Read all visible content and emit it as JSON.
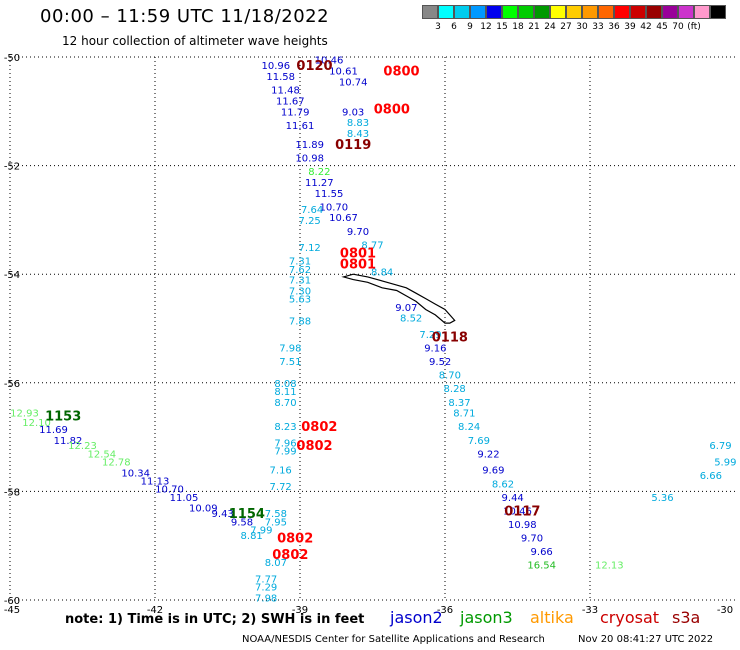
{
  "title": "00:00 – 11:59 UTC 11/18/2022",
  "subtitle": "12 hour collection of altimeter wave heights",
  "scale": {
    "colors": [
      "#888888",
      "#00ffff",
      "#00ccee",
      "#0099ff",
      "#0000ee",
      "#00ff00",
      "#00cc00",
      "#009900",
      "#ffff00",
      "#ffcc00",
      "#ff9900",
      "#ff6600",
      "#ff0000",
      "#cc0000",
      "#990000",
      "#990099",
      "#cc33cc",
      "#ff99cc",
      "#000000"
    ],
    "labels": [
      "3",
      "6",
      "9",
      "12",
      "15",
      "18",
      "21",
      "24",
      "27",
      "30",
      "33",
      "36",
      "39",
      "42",
      "45",
      "70",
      "(ft)"
    ]
  },
  "axes": {
    "lon_ticks": [
      "-45",
      "-42",
      "-39",
      "-36",
      "-33",
      "-30"
    ],
    "lat_ticks": [
      "-50",
      "-52",
      "-54",
      "-56",
      "-58",
      "-60"
    ]
  },
  "time_labels": [
    {
      "text": "0120",
      "lon": -38.7,
      "lat": -50.15,
      "color": "#880000"
    },
    {
      "text": "0800",
      "lon": -36.9,
      "lat": -50.25,
      "color": "#ff0000"
    },
    {
      "text": "0800",
      "lon": -37.1,
      "lat": -50.95,
      "color": "#ff0000"
    },
    {
      "text": "0119",
      "lon": -37.9,
      "lat": -51.6,
      "color": "#880000"
    },
    {
      "text": "0801",
      "lon": -37.8,
      "lat": -53.6,
      "color": "#ff0000"
    },
    {
      "text": "0801",
      "lon": -37.8,
      "lat": -53.8,
      "color": "#ff0000"
    },
    {
      "text": "0118",
      "lon": -35.9,
      "lat": -55.15,
      "color": "#880000"
    },
    {
      "text": "1153",
      "lon": -43.9,
      "lat": -56.6,
      "color": "#006600"
    },
    {
      "text": "0802",
      "lon": -38.6,
      "lat": -56.8,
      "color": "#ff0000"
    },
    {
      "text": "0802",
      "lon": -38.7,
      "lat": -57.15,
      "color": "#ff0000"
    },
    {
      "text": "0117",
      "lon": -34.4,
      "lat": -58.35,
      "color": "#880000"
    },
    {
      "text": "1154",
      "lon": -40.1,
      "lat": -58.4,
      "color": "#006600"
    },
    {
      "text": "0802",
      "lon": -39.1,
      "lat": -58.85,
      "color": "#ff0000"
    },
    {
      "text": "0802",
      "lon": -39.2,
      "lat": -59.15,
      "color": "#ff0000"
    }
  ],
  "value_labels": [
    {
      "text": "10.46",
      "lon": -38.4,
      "lat": -50.05,
      "color": "#0000cc"
    },
    {
      "text": "10.96",
      "lon": -39.5,
      "lat": -50.15,
      "color": "#0000cc"
    },
    {
      "text": "10.61",
      "lon": -38.1,
      "lat": -50.25,
      "color": "#0000cc"
    },
    {
      "text": "11.58",
      "lon": -39.4,
      "lat": -50.35,
      "color": "#0000cc"
    },
    {
      "text": "10.74",
      "lon": -37.9,
      "lat": -50.45,
      "color": "#0000cc"
    },
    {
      "text": "11.48",
      "lon": -39.3,
      "lat": -50.6,
      "color": "#0000cc"
    },
    {
      "text": "11.67",
      "lon": -39.2,
      "lat": -50.8,
      "color": "#0000cc"
    },
    {
      "text": "9.03",
      "lon": -37.9,
      "lat": -51.0,
      "color": "#0000cc"
    },
    {
      "text": "11.79",
      "lon": -39.1,
      "lat": -51.0,
      "color": "#0000cc"
    },
    {
      "text": "8.83",
      "lon": -37.8,
      "lat": -51.2,
      "color": "#00aadd"
    },
    {
      "text": "11.61",
      "lon": -39.0,
      "lat": -51.25,
      "color": "#0000cc"
    },
    {
      "text": "8.43",
      "lon": -37.8,
      "lat": -51.4,
      "color": "#00aadd"
    },
    {
      "text": "11.89",
      "lon": -38.8,
      "lat": -51.6,
      "color": "#0000cc"
    },
    {
      "text": "10.98",
      "lon": -38.8,
      "lat": -51.85,
      "color": "#0000cc"
    },
    {
      "text": "8.22",
      "lon": -38.6,
      "lat": -52.1,
      "color": "#33ee33"
    },
    {
      "text": "11.27",
      "lon": -38.6,
      "lat": -52.3,
      "color": "#0000cc"
    },
    {
      "text": "11.55",
      "lon": -38.4,
      "lat": -52.5,
      "color": "#0000cc"
    },
    {
      "text": "10.70",
      "lon": -38.3,
      "lat": -52.75,
      "color": "#0000cc"
    },
    {
      "text": "7.64",
      "lon": -38.75,
      "lat": -52.8,
      "color": "#00aadd"
    },
    {
      "text": "10.67",
      "lon": -38.1,
      "lat": -52.95,
      "color": "#0000cc"
    },
    {
      "text": "7.25",
      "lon": -38.8,
      "lat": -53.0,
      "color": "#00aadd"
    },
    {
      "text": "9.70",
      "lon": -37.8,
      "lat": -53.2,
      "color": "#0000cc"
    },
    {
      "text": "8.77",
      "lon": -37.5,
      "lat": -53.45,
      "color": "#00aadd"
    },
    {
      "text": "7.12",
      "lon": -38.8,
      "lat": -53.5,
      "color": "#00aadd"
    },
    {
      "text": "7.31",
      "lon": -39.0,
      "lat": -53.75,
      "color": "#00aadd"
    },
    {
      "text": "7.62",
      "lon": -39.0,
      "lat": -53.9,
      "color": "#00aadd"
    },
    {
      "text": "8.84",
      "lon": -37.3,
      "lat": -53.95,
      "color": "#00aadd"
    },
    {
      "text": "7.31",
      "lon": -39.0,
      "lat": -54.1,
      "color": "#00aadd"
    },
    {
      "text": "7.30",
      "lon": -39.0,
      "lat": -54.3,
      "color": "#00aadd"
    },
    {
      "text": "5.63",
      "lon": -39.0,
      "lat": -54.45,
      "color": "#00aadd"
    },
    {
      "text": "9.07",
      "lon": -36.8,
      "lat": -54.6,
      "color": "#0000cc"
    },
    {
      "text": "8.52",
      "lon": -36.7,
      "lat": -54.8,
      "color": "#00aadd"
    },
    {
      "text": "7.88",
      "lon": -39.0,
      "lat": -54.85,
      "color": "#00aadd"
    },
    {
      "text": "7.29",
      "lon": -36.3,
      "lat": -55.1,
      "color": "#00aadd"
    },
    {
      "text": "7.98",
      "lon": -39.2,
      "lat": -55.35,
      "color": "#00aadd"
    },
    {
      "text": "9.16",
      "lon": -36.2,
      "lat": -55.35,
      "color": "#0000cc"
    },
    {
      "text": "7.51",
      "lon": -39.2,
      "lat": -55.6,
      "color": "#00aadd"
    },
    {
      "text": "9.52",
      "lon": -36.1,
      "lat": -55.6,
      "color": "#0000cc"
    },
    {
      "text": "8.70",
      "lon": -35.9,
      "lat": -55.85,
      "color": "#00aadd"
    },
    {
      "text": "8.08",
      "lon": -39.3,
      "lat": -56.0,
      "color": "#00aadd"
    },
    {
      "text": "8.28",
      "lon": -35.8,
      "lat": -56.1,
      "color": "#00aadd"
    },
    {
      "text": "8.11",
      "lon": -39.3,
      "lat": -56.15,
      "color": "#00aadd"
    },
    {
      "text": "8.37",
      "lon": -35.7,
      "lat": -56.35,
      "color": "#00aadd"
    },
    {
      "text": "8.70",
      "lon": -39.3,
      "lat": -56.35,
      "color": "#00aadd"
    },
    {
      "text": "12.93",
      "lon": -44.7,
      "lat": -56.55,
      "color": "#66ee66"
    },
    {
      "text": "8.71",
      "lon": -35.6,
      "lat": -56.55,
      "color": "#00aadd"
    },
    {
      "text": "12.10",
      "lon": -44.45,
      "lat": -56.72,
      "color": "#66ee66"
    },
    {
      "text": "8.23",
      "lon": -39.3,
      "lat": -56.8,
      "color": "#00aadd"
    },
    {
      "text": "8.24",
      "lon": -35.5,
      "lat": -56.8,
      "color": "#00aadd"
    },
    {
      "text": "11.69",
      "lon": -44.1,
      "lat": -56.85,
      "color": "#0000cc"
    },
    {
      "text": "11.82",
      "lon": -43.8,
      "lat": -57.05,
      "color": "#0000cc"
    },
    {
      "text": "7.69",
      "lon": -35.3,
      "lat": -57.05,
      "color": "#00aadd"
    },
    {
      "text": "7.96",
      "lon": -39.3,
      "lat": -57.1,
      "color": "#00aadd"
    },
    {
      "text": "12.23",
      "lon": -43.5,
      "lat": -57.15,
      "color": "#66ee66"
    },
    {
      "text": "7.99",
      "lon": -39.3,
      "lat": -57.25,
      "color": "#00aadd"
    },
    {
      "text": "12.54",
      "lon": -43.1,
      "lat": -57.3,
      "color": "#66ee66"
    },
    {
      "text": "9.22",
      "lon": -35.1,
      "lat": -57.3,
      "color": "#0000cc"
    },
    {
      "text": "12.78",
      "lon": -42.8,
      "lat": -57.45,
      "color": "#66ee66"
    },
    {
      "text": "10.34",
      "lon": -42.4,
      "lat": -57.65,
      "color": "#0000cc"
    },
    {
      "text": "7.16",
      "lon": -39.4,
      "lat": -57.6,
      "color": "#00aadd"
    },
    {
      "text": "9.69",
      "lon": -35.0,
      "lat": -57.6,
      "color": "#0000cc"
    },
    {
      "text": "11.13",
      "lon": -42.0,
      "lat": -57.8,
      "color": "#0000cc"
    },
    {
      "text": "7.72",
      "lon": -39.4,
      "lat": -57.9,
      "color": "#00aadd"
    },
    {
      "text": "8.62",
      "lon": -34.8,
      "lat": -57.85,
      "color": "#00aadd"
    },
    {
      "text": "10.70",
      "lon": -41.7,
      "lat": -57.95,
      "color": "#0000cc"
    },
    {
      "text": "11.05",
      "lon": -41.4,
      "lat": -58.1,
      "color": "#0000cc"
    },
    {
      "text": "9.44",
      "lon": -34.6,
      "lat": -58.1,
      "color": "#0000cc"
    },
    {
      "text": "10.09",
      "lon": -41.0,
      "lat": -58.3,
      "color": "#0000cc"
    },
    {
      "text": "10.46",
      "lon": -34.5,
      "lat": -58.35,
      "color": "#0000cc"
    },
    {
      "text": "9.43",
      "lon": -40.6,
      "lat": -58.4,
      "color": "#0000cc"
    },
    {
      "text": "7.58",
      "lon": -39.5,
      "lat": -58.4,
      "color": "#00aadd"
    },
    {
      "text": "9.58",
      "lon": -40.2,
      "lat": -58.55,
      "color": "#0000cc"
    },
    {
      "text": "7.95",
      "lon": -39.5,
      "lat": -58.55,
      "color": "#00aadd"
    },
    {
      "text": "10.98",
      "lon": -34.4,
      "lat": -58.6,
      "color": "#0000cc"
    },
    {
      "text": "7.99",
      "lon": -39.8,
      "lat": -58.7,
      "color": "#00aadd"
    },
    {
      "text": "8.81",
      "lon": -40.0,
      "lat": -58.8,
      "color": "#00aadd"
    },
    {
      "text": "9.70",
      "lon": -34.2,
      "lat": -58.85,
      "color": "#0000cc"
    },
    {
      "text": "9.66",
      "lon": -34.0,
      "lat": -59.1,
      "color": "#0000cc"
    },
    {
      "text": "8.07",
      "lon": -39.5,
      "lat": -59.3,
      "color": "#00aadd"
    },
    {
      "text": "16.54",
      "lon": -34.0,
      "lat": -59.35,
      "color": "#22bb22"
    },
    {
      "text": "7.77",
      "lon": -39.7,
      "lat": -59.6,
      "color": "#00aadd"
    },
    {
      "text": "7.29",
      "lon": -39.7,
      "lat": -59.75,
      "color": "#00aadd"
    },
    {
      "text": "7.98",
      "lon": -39.7,
      "lat": -59.95,
      "color": "#00aadd"
    },
    {
      "text": "6.79",
      "lon": -30.3,
      "lat": -57.15,
      "color": "#00aadd"
    },
    {
      "text": "5.99",
      "lon": -30.2,
      "lat": -57.45,
      "color": "#00aadd"
    },
    {
      "text": "6.66",
      "lon": -30.5,
      "lat": -57.7,
      "color": "#00aadd"
    },
    {
      "text": "5.36",
      "lon": -31.5,
      "lat": -58.1,
      "color": "#00aadd"
    },
    {
      "text": "12.13",
      "lon": -32.6,
      "lat": -59.35,
      "color": "#66ee66"
    }
  ],
  "note": "note: 1) Time is in UTC; 2) SWH is in feet",
  "legend": [
    {
      "text": "jason2",
      "color": "#0000cc"
    },
    {
      "text": "jason3",
      "color": "#009900"
    },
    {
      "text": "altika",
      "color": "#ff9900"
    },
    {
      "text": "cryosat",
      "color": "#cc0000"
    },
    {
      "text": "s3a",
      "color": "#990000"
    }
  ],
  "footer": "NOAA/NESDIS Center for Satellite Applications and Research",
  "generated": "Nov 20 08:41:27 UTC 2022"
}
